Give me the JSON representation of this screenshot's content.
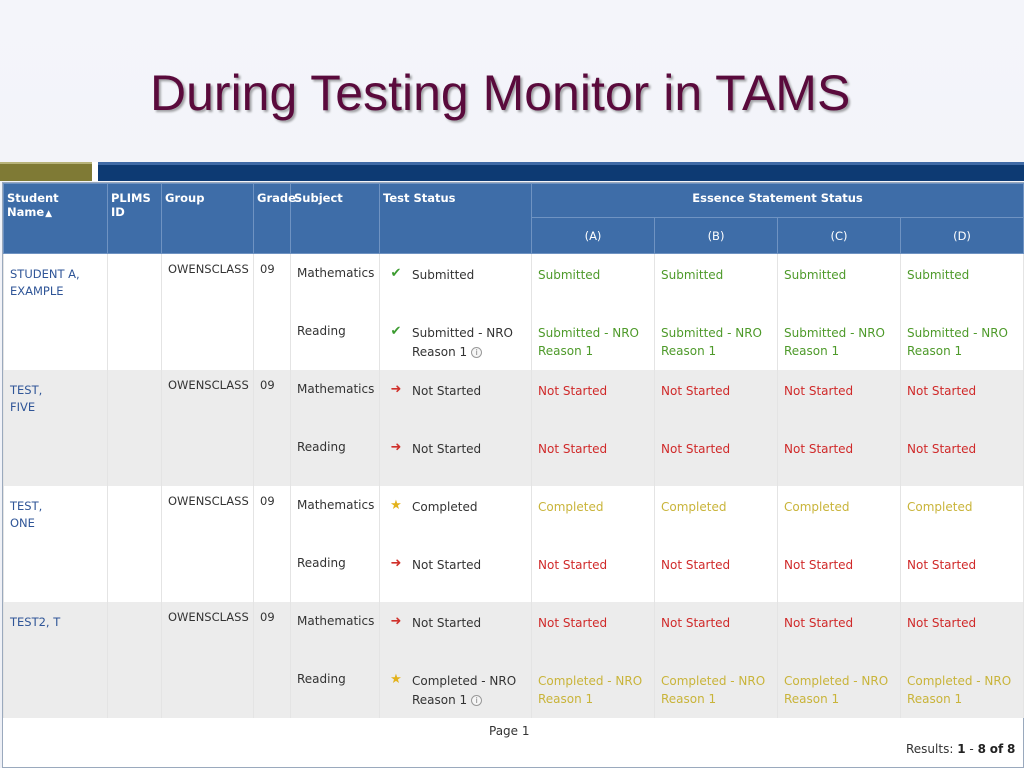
{
  "slide": {
    "title": "During Testing Monitor in TAMS"
  },
  "table": {
    "headers": {
      "student_name": "Student Name",
      "plims_id": "PLIMS ID",
      "group": "Group",
      "grade": "Grade",
      "subject": "Subject",
      "test_status": "Test Status",
      "essence_status": "Essence Statement Status",
      "essence_cols": [
        "(A)",
        "(B)",
        "(C)",
        "(D)"
      ]
    },
    "rows": [
      {
        "name_line1": "STUDENT A,",
        "name_line2": "EXAMPLE",
        "plims_id": "",
        "group": "OWENSCLASS",
        "grade": "09",
        "subjects": [
          {
            "subject": "Mathematics",
            "status_icon": "check-icon",
            "status_line1": "Submitted",
            "status_line2": "",
            "essence": [
              {
                "line1": "Submitted",
                "line2": ""
              },
              {
                "line1": "Submitted",
                "line2": ""
              },
              {
                "line1": "Submitted",
                "line2": ""
              },
              {
                "line1": "Submitted",
                "line2": ""
              }
            ]
          },
          {
            "subject": "Reading",
            "status_icon": "check-icon",
            "status_line1": "Submitted - NRO",
            "status_line2": "Reason 1",
            "essence": [
              {
                "line1": "Submitted - NRO",
                "line2": "Reason 1"
              },
              {
                "line1": "Submitted - NRO",
                "line2": "Reason 1"
              },
              {
                "line1": "Submitted - NRO",
                "line2": "Reason 1"
              },
              {
                "line1": "Submitted - NRO",
                "line2": "Reason 1"
              }
            ]
          }
        ]
      },
      {
        "name_line1": "TEST,",
        "name_line2": "FIVE",
        "plims_id": "",
        "group": "OWENSCLASS",
        "grade": "09",
        "subjects": [
          {
            "subject": "Mathematics",
            "status_icon": "arrow-icon",
            "status_line1": "Not Started",
            "status_line2": "",
            "essence": [
              {
                "line1": "Not Started",
                "line2": ""
              },
              {
                "line1": "Not Started",
                "line2": ""
              },
              {
                "line1": "Not Started",
                "line2": ""
              },
              {
                "line1": "Not Started",
                "line2": ""
              }
            ]
          },
          {
            "subject": "Reading",
            "status_icon": "arrow-icon",
            "status_line1": "Not Started",
            "status_line2": "",
            "essence": [
              {
                "line1": "Not Started",
                "line2": ""
              },
              {
                "line1": "Not Started",
                "line2": ""
              },
              {
                "line1": "Not Started",
                "line2": ""
              },
              {
                "line1": "Not Started",
                "line2": ""
              }
            ]
          }
        ]
      },
      {
        "name_line1": "TEST,",
        "name_line2": "ONE",
        "plims_id": "",
        "group": "OWENSCLASS",
        "grade": "09",
        "subjects": [
          {
            "subject": "Mathematics",
            "status_icon": "star-icon",
            "status_line1": "Completed",
            "status_line2": "",
            "essence": [
              {
                "line1": "Completed",
                "line2": ""
              },
              {
                "line1": "Completed",
                "line2": ""
              },
              {
                "line1": "Completed",
                "line2": ""
              },
              {
                "line1": "Completed",
                "line2": ""
              }
            ]
          },
          {
            "subject": "Reading",
            "status_icon": "arrow-icon",
            "status_line1": "Not Started",
            "status_line2": "",
            "essence": [
              {
                "line1": "Not Started",
                "line2": ""
              },
              {
                "line1": "Not Started",
                "line2": ""
              },
              {
                "line1": "Not Started",
                "line2": ""
              },
              {
                "line1": "Not Started",
                "line2": ""
              }
            ]
          }
        ]
      },
      {
        "name_line1": "TEST2, T",
        "name_line2": "",
        "plims_id": "",
        "group": "OWENSCLASS",
        "grade": "09",
        "subjects": [
          {
            "subject": "Mathematics",
            "status_icon": "arrow-icon",
            "status_line1": "Not Started",
            "status_line2": "",
            "essence": [
              {
                "line1": "Not Started",
                "line2": ""
              },
              {
                "line1": "Not Started",
                "line2": ""
              },
              {
                "line1": "Not Started",
                "line2": ""
              },
              {
                "line1": "Not Started",
                "line2": ""
              }
            ]
          },
          {
            "subject": "Reading",
            "status_icon": "star-icon",
            "status_line1": "Completed - NRO",
            "status_line2": "Reason 1",
            "essence": [
              {
                "line1": "Completed - NRO",
                "line2": "Reason 1"
              },
              {
                "line1": "Completed - NRO",
                "line2": "Reason 1"
              },
              {
                "line1": "Completed - NRO",
                "line2": "Reason 1"
              },
              {
                "line1": "Completed - NRO",
                "line2": "Reason 1"
              }
            ]
          }
        ]
      }
    ]
  },
  "pager": {
    "page_label": "Page 1",
    "results_prefix": "Results:",
    "results_from": "1",
    "results_dash": "-",
    "results_to": "8",
    "results_of": "of",
    "results_total": "8"
  },
  "colors": {
    "title": "#5a0a3c",
    "header_bg": "#3e6da8",
    "submitted": "#4e9a2a",
    "not_started": "#d02a2a",
    "completed": "#c9b43a",
    "name_link": "#2f5597"
  }
}
